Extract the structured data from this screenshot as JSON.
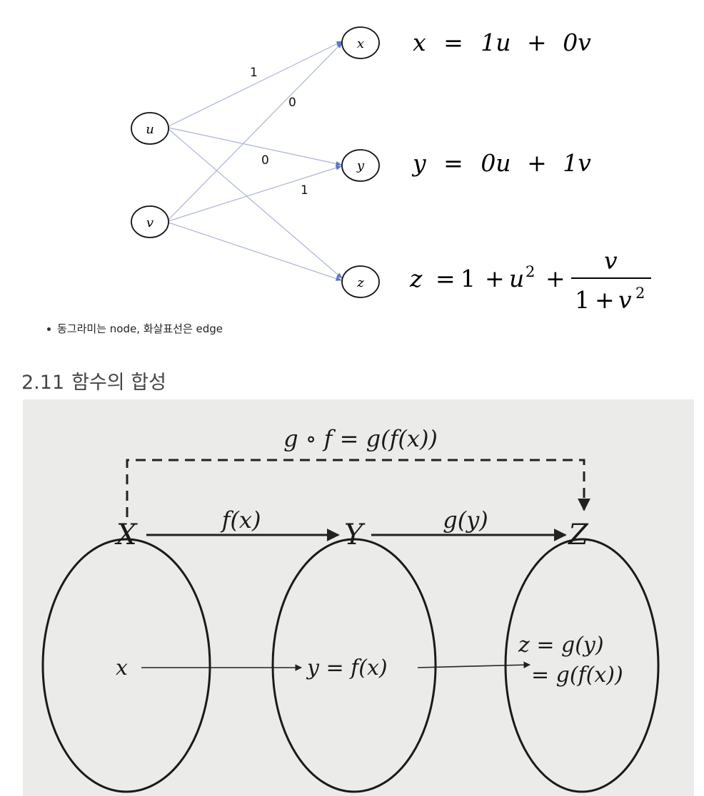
{
  "graph": {
    "nodes": [
      {
        "id": "u",
        "label": "u"
      },
      {
        "id": "v",
        "label": "v"
      },
      {
        "id": "x",
        "label": "x"
      },
      {
        "id": "y",
        "label": "y"
      },
      {
        "id": "z",
        "label": "z"
      }
    ],
    "edges": [
      {
        "from": "u",
        "to": "x",
        "weight": "1"
      },
      {
        "from": "v",
        "to": "x",
        "weight": "0"
      },
      {
        "from": "u",
        "to": "y",
        "weight": "0"
      },
      {
        "from": "v",
        "to": "y",
        "weight": "1"
      },
      {
        "from": "u",
        "to": "z"
      },
      {
        "from": "v",
        "to": "z"
      }
    ],
    "equations": {
      "x": {
        "lhs": "x",
        "eq": "=",
        "t1": "1u",
        "plus": "+",
        "t2": "0v"
      },
      "y": {
        "lhs": "y",
        "eq": "=",
        "t1": "0u",
        "plus": "+",
        "t2": "1v"
      },
      "z": {
        "lhs": "z",
        "eq": "=",
        "one": "1",
        "plus": "+",
        "u": "u",
        "exp": "2",
        "plus2": "+",
        "num": "v",
        "den_one": "1",
        "den_plus": "+",
        "den_v": "v",
        "den_exp": "2"
      }
    },
    "edge_color": "#a9b4d6",
    "arrow_color": "#5b76bf"
  },
  "note": "동그라미는 node, 화살표선은 edge",
  "section": {
    "number": "2.11",
    "title": "함수의 합성"
  },
  "composition": {
    "top_label": "g ∘ f = g(f(x))",
    "sets": [
      "X",
      "Y",
      "Z"
    ],
    "map1": "f(x)",
    "map2": "g(y)",
    "elem_x": "x",
    "elem_y": "y = f(x)",
    "elem_z1": "z = g(y)",
    "elem_z2": "= g(f(x))"
  }
}
